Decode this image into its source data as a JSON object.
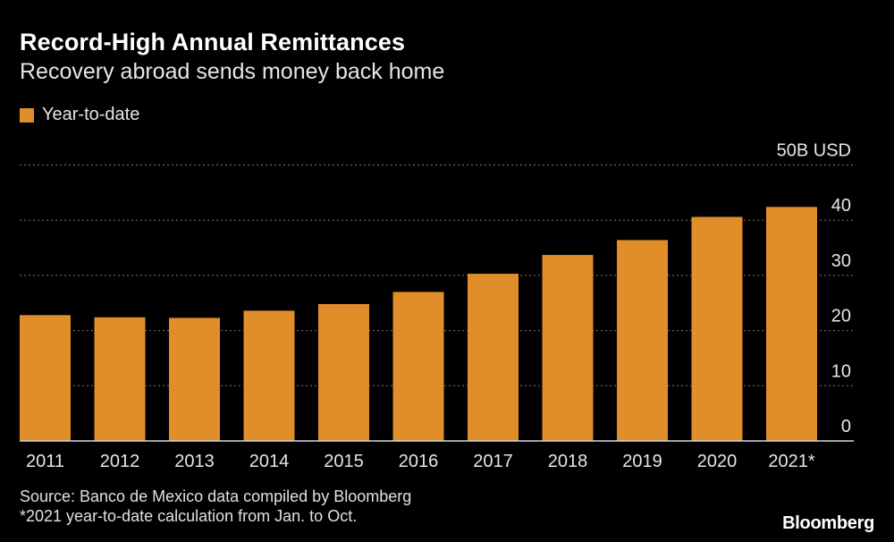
{
  "title": "Record-High Annual Remittances",
  "subtitle": "Recovery abroad sends money back home",
  "legend": {
    "label": "Year-to-date",
    "color": "#e18d2a"
  },
  "chart_data": {
    "type": "bar",
    "title": "Record-High Annual Remittances",
    "subtitle": "Recovery abroad sends money back home",
    "categories": [
      "2011",
      "2012",
      "2013",
      "2014",
      "2015",
      "2016",
      "2017",
      "2018",
      "2019",
      "2020",
      "2021*"
    ],
    "series": [
      {
        "name": "Year-to-date",
        "values": [
          22.8,
          22.4,
          22.3,
          23.6,
          24.8,
          27.0,
          30.3,
          33.7,
          36.4,
          40.6,
          42.4
        ]
      }
    ],
    "ylim": [
      0,
      50
    ],
    "yticks": [
      "0",
      "10",
      "20",
      "30",
      "40",
      "50B USD"
    ],
    "yunit": "B USD",
    "grid": true,
    "legend_position": "top-left",
    "bar_color": "#e18d2a"
  },
  "footer": {
    "source": "Source: Banco de Mexico data compiled by Bloomberg",
    "note": "*2021 year-to-date calculation from Jan. to Oct."
  },
  "brand": "Bloomberg"
}
